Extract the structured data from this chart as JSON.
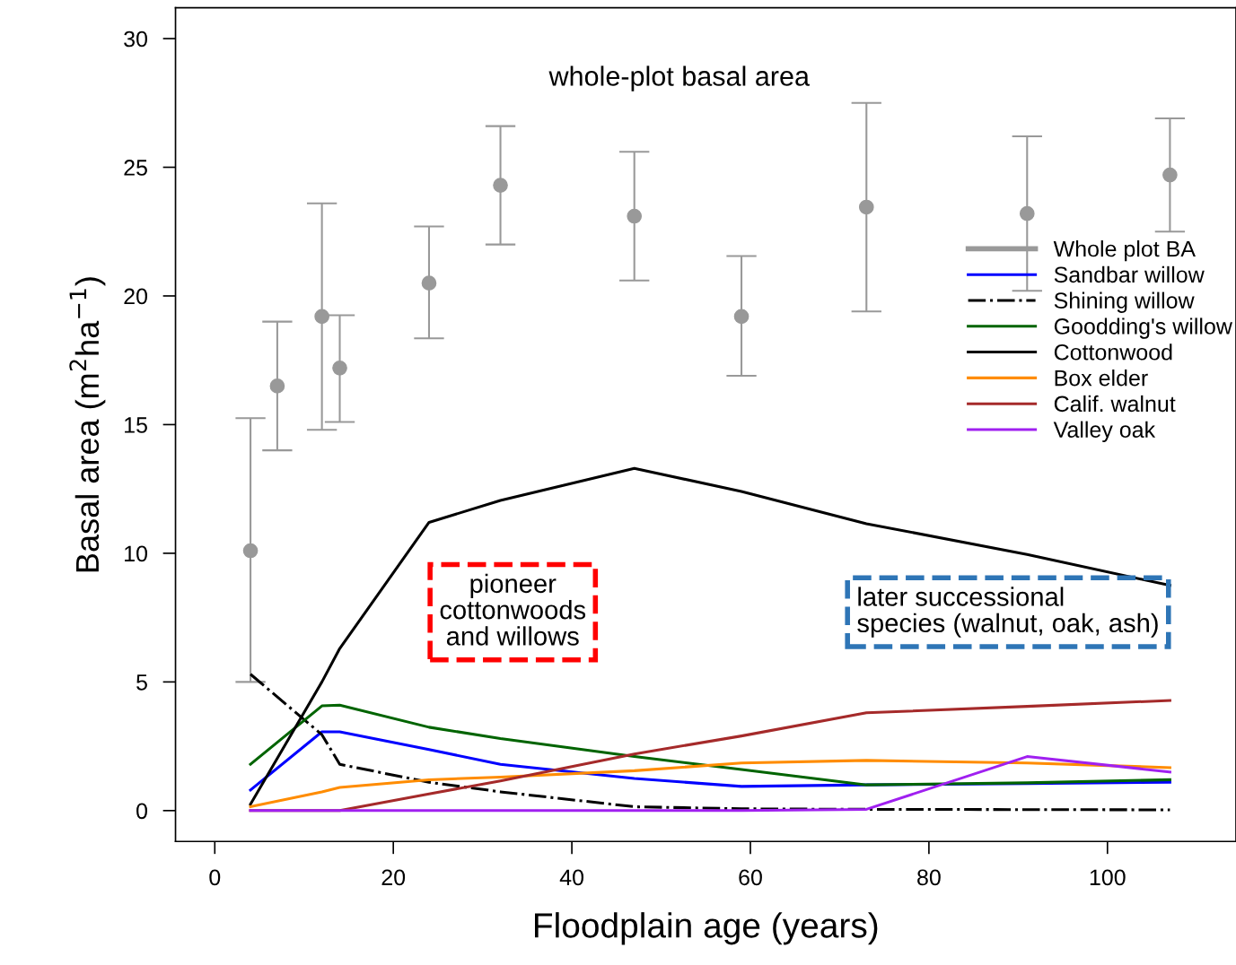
{
  "chart_data": {
    "type": "line",
    "xlabel": "Floodplain age (years)",
    "ylabel": "Basal area (m$^{2}$ha$^{−1}$)",
    "xlim": [
      -4.4,
      114.4
    ],
    "ylim": [
      -1.2,
      31.2
    ],
    "xticks": [
      0,
      20,
      40,
      60,
      80,
      100
    ],
    "yticks": [
      0,
      5,
      10,
      15,
      20,
      25,
      30
    ],
    "grid": false,
    "legend": "right",
    "line_style": "solid",
    "annotations": [
      "whole-plot basal area",
      "pioneer\ncottonwoods\nand willows",
      "later successional\nspecies (walnut, oak, ash)"
    ],
    "series": [
      {
        "name": "Whole plot BA",
        "type": "scatter",
        "marker": "circle",
        "color": "#999999",
        "x": [
          4,
          7,
          12,
          14,
          24,
          32,
          47,
          59,
          73,
          91,
          107
        ],
        "values": [
          10.1,
          16.5,
          19.2,
          17.2,
          20.5,
          24.3,
          23.1,
          19.2,
          23.45,
          23.2,
          24.7
        ],
        "errors": [
          [
            5.0,
            15.25
          ],
          [
            14.0,
            19.0
          ],
          [
            14.8,
            23.6
          ],
          [
            15.1,
            19.25
          ],
          [
            18.35,
            22.7
          ],
          [
            22.0,
            26.6
          ],
          [
            20.6,
            25.6
          ],
          [
            16.9,
            21.55
          ],
          [
            19.4,
            27.5
          ],
          [
            20.2,
            26.2
          ],
          [
            22.5,
            26.9
          ]
        ]
      },
      {
        "name": "Sandbar willow",
        "color": "#0000ff",
        "x": [
          4,
          12,
          14,
          24,
          32,
          47,
          59,
          73,
          91,
          107
        ],
        "values": [
          0.8,
          3.06,
          3.06,
          2.37,
          1.8,
          1.25,
          0.94,
          1.0,
          1.05,
          1.1
        ]
      },
      {
        "name": "Shining willow",
        "color": "#000000",
        "line_style": "dashdot",
        "x": [
          4,
          12,
          14,
          24,
          32,
          47,
          59,
          73,
          91,
          107
        ],
        "values": [
          5.3,
          2.95,
          1.8,
          1.1,
          0.73,
          0.15,
          0.07,
          0.05,
          0.04,
          0.03
        ]
      },
      {
        "name": "Goodding's willow",
        "color": "#006400",
        "x": [
          4,
          12,
          14,
          24,
          32,
          47,
          59,
          73,
          91,
          107
        ],
        "values": [
          1.8,
          4.07,
          4.1,
          3.24,
          2.8,
          2.1,
          1.6,
          1.0,
          1.08,
          1.2
        ]
      },
      {
        "name": "Cottonwood",
        "color": "#000000",
        "x": [
          4,
          12,
          14,
          24,
          32,
          47,
          59,
          73,
          91,
          107
        ],
        "values": [
          0.25,
          5.0,
          6.3,
          11.2,
          12.05,
          13.3,
          12.4,
          11.15,
          9.95,
          8.75
        ]
      },
      {
        "name": "Box elder",
        "color": "#ff8c00",
        "x": [
          4,
          12,
          14,
          24,
          32,
          47,
          59,
          73,
          91,
          107
        ],
        "values": [
          0.15,
          0.73,
          0.9,
          1.2,
          1.3,
          1.55,
          1.85,
          1.95,
          1.85,
          1.67
        ]
      },
      {
        "name": "Calif. walnut",
        "color": "#a52a2a",
        "x": [
          4,
          12,
          14,
          24,
          32,
          47,
          59,
          73,
          91,
          107
        ],
        "values": [
          0,
          0,
          0,
          0.65,
          1.15,
          2.2,
          2.9,
          3.8,
          4.05,
          4.28
        ]
      },
      {
        "name": "Valley oak",
        "color": "#a020f0",
        "x": [
          4,
          12,
          14,
          24,
          32,
          47,
          59,
          73,
          91,
          107
        ],
        "values": [
          0,
          0,
          0,
          0,
          0,
          0,
          0,
          0.05,
          2.1,
          1.5
        ]
      }
    ]
  }
}
